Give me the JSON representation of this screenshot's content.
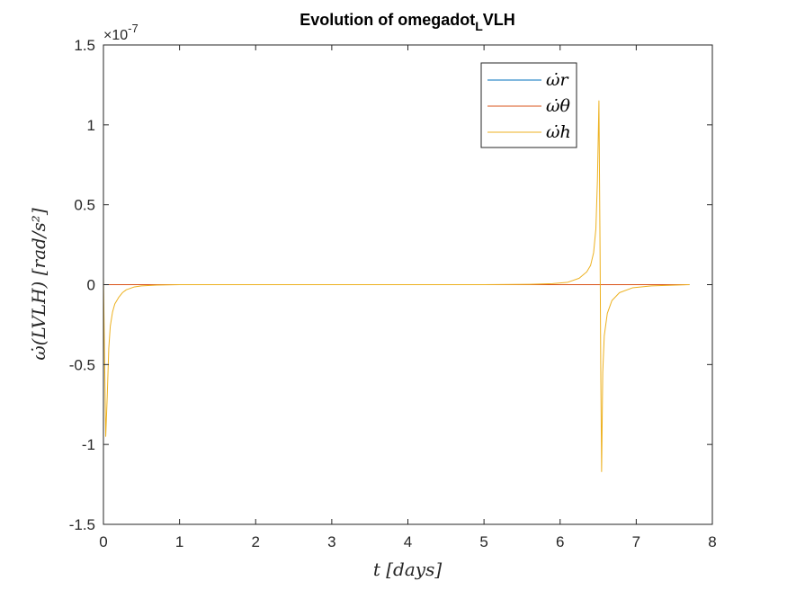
{
  "chart_data": {
    "type": "line",
    "title_main": "Evolution of omegadot",
    "title_sub": "L",
    "title_tail": "VLH",
    "xlabel": "t [days]",
    "ylabel": "ω̇(LVLH)  [rad/s²]",
    "y_exponent": "×10",
    "y_exponent_power": "-7",
    "xlim": [
      0,
      8
    ],
    "ylim": [
      -1.5,
      1.5
    ],
    "xticks": [
      "0",
      "1",
      "2",
      "3",
      "4",
      "5",
      "6",
      "7",
      "8"
    ],
    "yticks": [
      "-1.5",
      "-1",
      "-0.5",
      "0",
      "0.5",
      "1",
      "1.5"
    ],
    "grid": false,
    "legend_position": "top-right",
    "series": [
      {
        "name": "ω̇r",
        "color": "#0072BD",
        "x": [
          0,
          7.7
        ],
        "y": [
          0,
          0
        ]
      },
      {
        "name": "ω̇θ",
        "color": "#D95319",
        "x": [
          0,
          7.7
        ],
        "y": [
          0,
          0
        ]
      },
      {
        "name": "ω̇h",
        "color": "#EDB120",
        "x": [
          0,
          0.01,
          0.03,
          0.05,
          0.07,
          0.09,
          0.12,
          0.15,
          0.2,
          0.25,
          0.3,
          0.4,
          0.5,
          0.7,
          1.0,
          2.0,
          3.0,
          4.0,
          5.0,
          5.6,
          5.9,
          6.1,
          6.25,
          6.35,
          6.4,
          6.44,
          6.47,
          6.49,
          6.51,
          6.525,
          6.535,
          6.545,
          6.56,
          6.58,
          6.62,
          6.68,
          6.78,
          6.95,
          7.2,
          7.7
        ],
        "y": [
          0.05,
          -0.3,
          -0.95,
          -0.7,
          -0.4,
          -0.26,
          -0.17,
          -0.12,
          -0.08,
          -0.05,
          -0.032,
          -0.015,
          -0.008,
          -0.003,
          0,
          0,
          0,
          0,
          0,
          0.002,
          0.006,
          0.015,
          0.04,
          0.08,
          0.12,
          0.2,
          0.35,
          0.65,
          1.15,
          0.2,
          -0.6,
          -1.17,
          -0.55,
          -0.32,
          -0.18,
          -0.1,
          -0.05,
          -0.02,
          -0.008,
          0
        ]
      }
    ]
  }
}
